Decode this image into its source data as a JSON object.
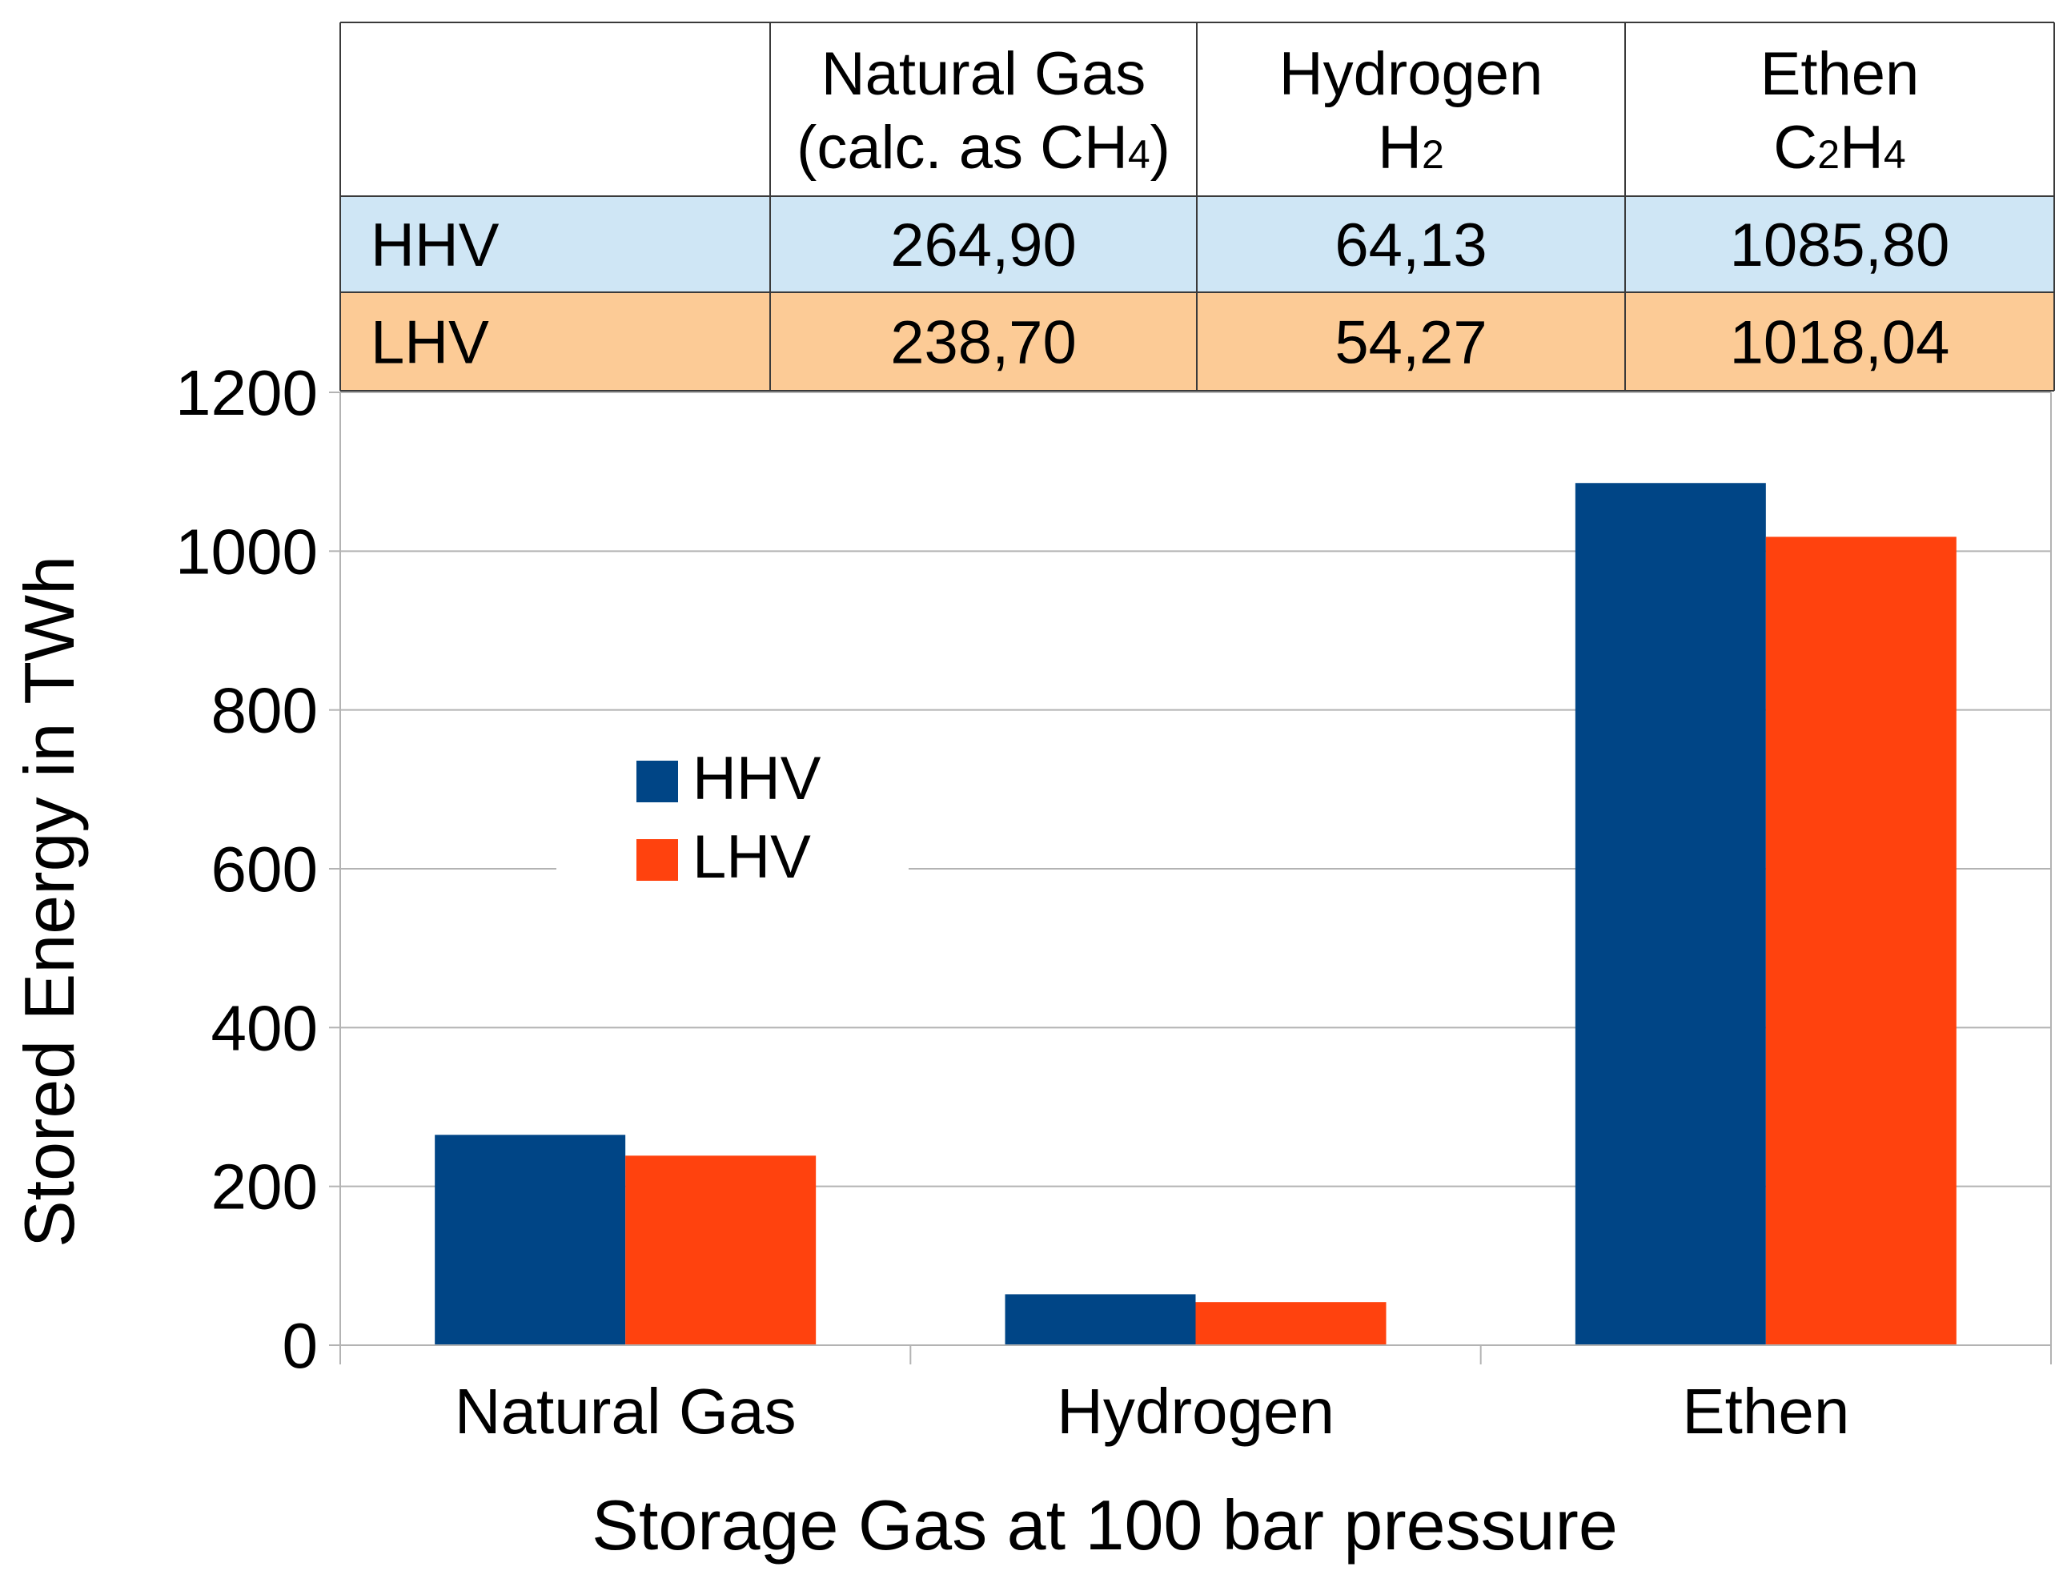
{
  "table": {
    "columns": [
      {
        "line1": "Natural Gas",
        "line2": "(calc. as CH",
        "sub": "4",
        "suffix": ")"
      },
      {
        "line1": "Hydrogen",
        "line2": "H",
        "sub": "2",
        "suffix": ""
      },
      {
        "line1": "Ethen",
        "line2": "C",
        "sub": "2",
        "mid": "H",
        "sub2": "4",
        "suffix": ""
      }
    ],
    "rows": [
      {
        "label": "HHV",
        "values": [
          "264,90",
          "64,13",
          "1085,80"
        ],
        "color": "#cfe6f5"
      },
      {
        "label": "LHV",
        "values": [
          "238,70",
          "54,27",
          "1018,04"
        ],
        "color": "#fccb96"
      }
    ]
  },
  "colors": {
    "hhv": "#004586",
    "lhv": "#ff420e",
    "grid": "#b3b3b3"
  },
  "chart_data": {
    "type": "bar",
    "categories": [
      "Natural Gas",
      "Hydrogen",
      "Ethen"
    ],
    "series": [
      {
        "name": "HHV",
        "values": [
          264.9,
          64.13,
          1085.8
        ]
      },
      {
        "name": "LHV",
        "values": [
          238.7,
          54.27,
          1018.04
        ]
      }
    ],
    "title": "",
    "xlabel": "Storage Gas at 100 bar pressure",
    "ylabel": "Stored Energy in TWh",
    "ylim": [
      0,
      1200
    ],
    "yticks": [
      0,
      200,
      400,
      600,
      800,
      1000,
      1200
    ],
    "grid": true,
    "legend": "left"
  }
}
